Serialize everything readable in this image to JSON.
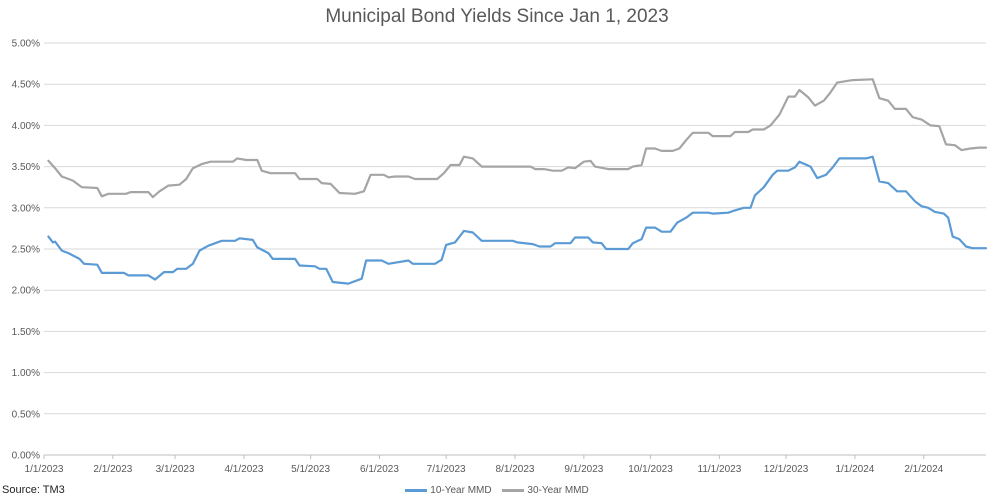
{
  "chart_data": {
    "type": "line",
    "title": "Municipal Bond Yields Since Jan 1, 2023",
    "xlabel": "",
    "ylabel": "",
    "ylim": [
      0,
      5
    ],
    "y_ticks": [
      0,
      0.5,
      1,
      1.5,
      2,
      2.5,
      3,
      3.5,
      4,
      4.5,
      5
    ],
    "y_tick_labels": [
      "0.00%",
      "0.50%",
      "1.00%",
      "1.50%",
      "2.00%",
      "2.50%",
      "3.00%",
      "3.50%",
      "4.00%",
      "4.50%",
      "5.00%"
    ],
    "x_tick_labels": [
      "1/1/2023",
      "2/1/2023",
      "3/1/2023",
      "4/1/2023",
      "5/1/2023",
      "6/1/2023",
      "7/1/2023",
      "8/1/2023",
      "9/1/2023",
      "10/1/2023",
      "11/1/2023",
      "12/1/2023",
      "1/1/2024",
      "2/1/2024"
    ],
    "x_range": [
      "2023-01-01",
      "2024-02-29"
    ],
    "grid": true,
    "legend_position": "bottom",
    "series": [
      {
        "name": "10-Year MMD",
        "color": "#5b9bd5",
        "points": [
          [
            "2023-01-03",
            2.65
          ],
          [
            "2023-01-05",
            2.58
          ],
          [
            "2023-01-06",
            2.59
          ],
          [
            "2023-01-09",
            2.48
          ],
          [
            "2023-01-12",
            2.45
          ],
          [
            "2023-01-17",
            2.38
          ],
          [
            "2023-01-19",
            2.32
          ],
          [
            "2023-01-25",
            2.31
          ],
          [
            "2023-01-27",
            2.21
          ],
          [
            "2023-02-06",
            2.21
          ],
          [
            "2023-02-08",
            2.18
          ],
          [
            "2023-02-17",
            2.18
          ],
          [
            "2023-02-20",
            2.13
          ],
          [
            "2023-02-24",
            2.22
          ],
          [
            "2023-02-28",
            2.22
          ],
          [
            "2023-03-02",
            2.26
          ],
          [
            "2023-03-06",
            2.26
          ],
          [
            "2023-03-09",
            2.32
          ],
          [
            "2023-03-12",
            2.48
          ],
          [
            "2023-03-16",
            2.54
          ],
          [
            "2023-03-22",
            2.6
          ],
          [
            "2023-03-28",
            2.6
          ],
          [
            "2023-03-30",
            2.63
          ],
          [
            "2023-04-05",
            2.61
          ],
          [
            "2023-04-07",
            2.52
          ],
          [
            "2023-04-12",
            2.45
          ],
          [
            "2023-04-14",
            2.38
          ],
          [
            "2023-04-24",
            2.38
          ],
          [
            "2023-04-26",
            2.3
          ],
          [
            "2023-05-03",
            2.29
          ],
          [
            "2023-05-05",
            2.26
          ],
          [
            "2023-05-08",
            2.26
          ],
          [
            "2023-05-11",
            2.1
          ],
          [
            "2023-05-18",
            2.08
          ],
          [
            "2023-05-24",
            2.14
          ],
          [
            "2023-05-26",
            2.36
          ],
          [
            "2023-06-02",
            2.36
          ],
          [
            "2023-06-05",
            2.32
          ],
          [
            "2023-06-14",
            2.36
          ],
          [
            "2023-06-16",
            2.32
          ],
          [
            "2023-06-26",
            2.32
          ],
          [
            "2023-06-29",
            2.37
          ],
          [
            "2023-07-01",
            2.55
          ],
          [
            "2023-07-05",
            2.58
          ],
          [
            "2023-07-09",
            2.72
          ],
          [
            "2023-07-13",
            2.7
          ],
          [
            "2023-07-17",
            2.6
          ],
          [
            "2023-07-31",
            2.6
          ],
          [
            "2023-08-02",
            2.58
          ],
          [
            "2023-08-09",
            2.56
          ],
          [
            "2023-08-12",
            2.53
          ],
          [
            "2023-08-17",
            2.53
          ],
          [
            "2023-08-19",
            2.57
          ],
          [
            "2023-08-26",
            2.57
          ],
          [
            "2023-08-28",
            2.64
          ],
          [
            "2023-09-03",
            2.64
          ],
          [
            "2023-09-05",
            2.58
          ],
          [
            "2023-09-09",
            2.57
          ],
          [
            "2023-09-11",
            2.5
          ],
          [
            "2023-09-21",
            2.5
          ],
          [
            "2023-09-23",
            2.57
          ],
          [
            "2023-09-27",
            2.62
          ],
          [
            "2023-09-29",
            2.76
          ],
          [
            "2023-10-03",
            2.76
          ],
          [
            "2023-10-06",
            2.71
          ],
          [
            "2023-10-10",
            2.71
          ],
          [
            "2023-10-13",
            2.82
          ],
          [
            "2023-10-17",
            2.88
          ],
          [
            "2023-10-20",
            2.94
          ],
          [
            "2023-10-27",
            2.94
          ],
          [
            "2023-10-29",
            2.93
          ],
          [
            "2023-11-05",
            2.94
          ],
          [
            "2023-11-07",
            2.96
          ],
          [
            "2023-11-12",
            3.0
          ],
          [
            "2023-11-15",
            3.0
          ],
          [
            "2023-11-17",
            3.15
          ],
          [
            "2023-11-21",
            3.25
          ],
          [
            "2023-11-25",
            3.4
          ],
          [
            "2023-11-27",
            3.45
          ],
          [
            "2023-12-02",
            3.45
          ],
          [
            "2023-12-05",
            3.49
          ],
          [
            "2023-12-07",
            3.56
          ],
          [
            "2023-12-12",
            3.5
          ],
          [
            "2023-12-15",
            3.36
          ],
          [
            "2023-12-19",
            3.4
          ],
          [
            "2023-12-22",
            3.49
          ],
          [
            "2023-12-25",
            3.6
          ],
          [
            "2024-01-06",
            3.6
          ],
          [
            "2024-01-09",
            3.62
          ],
          [
            "2024-01-12",
            3.32
          ],
          [
            "2024-01-16",
            3.3
          ],
          [
            "2024-01-20",
            3.2
          ],
          [
            "2024-01-24",
            3.2
          ],
          [
            "2024-01-28",
            3.08
          ],
          [
            "2024-01-31",
            3.02
          ],
          [
            "2024-02-03",
            3.0
          ],
          [
            "2024-02-06",
            2.95
          ],
          [
            "2024-02-10",
            2.93
          ],
          [
            "2024-02-12",
            2.88
          ],
          [
            "2024-02-14",
            2.65
          ],
          [
            "2024-02-17",
            2.62
          ],
          [
            "2024-02-20",
            2.53
          ],
          [
            "2024-02-23",
            2.51
          ],
          [
            "2024-02-29",
            2.51
          ]
        ]
      },
      {
        "name": "30-Year MMD",
        "color": "#a5a5a5",
        "points": [
          [
            "2023-01-03",
            3.57
          ],
          [
            "2023-01-06",
            3.48
          ],
          [
            "2023-01-09",
            3.38
          ],
          [
            "2023-01-14",
            3.33
          ],
          [
            "2023-01-18",
            3.25
          ],
          [
            "2023-01-25",
            3.24
          ],
          [
            "2023-01-27",
            3.14
          ],
          [
            "2023-01-30",
            3.17
          ],
          [
            "2023-02-07",
            3.17
          ],
          [
            "2023-02-09",
            3.19
          ],
          [
            "2023-02-17",
            3.19
          ],
          [
            "2023-02-19",
            3.13
          ],
          [
            "2023-02-22",
            3.2
          ],
          [
            "2023-02-26",
            3.27
          ],
          [
            "2023-03-03",
            3.28
          ],
          [
            "2023-03-06",
            3.35
          ],
          [
            "2023-03-09",
            3.48
          ],
          [
            "2023-03-13",
            3.53
          ],
          [
            "2023-03-17",
            3.56
          ],
          [
            "2023-03-27",
            3.56
          ],
          [
            "2023-03-29",
            3.6
          ],
          [
            "2023-04-02",
            3.58
          ],
          [
            "2023-04-07",
            3.58
          ],
          [
            "2023-04-09",
            3.45
          ],
          [
            "2023-04-13",
            3.42
          ],
          [
            "2023-04-24",
            3.42
          ],
          [
            "2023-04-26",
            3.35
          ],
          [
            "2023-05-04",
            3.35
          ],
          [
            "2023-05-06",
            3.3
          ],
          [
            "2023-05-10",
            3.29
          ],
          [
            "2023-05-14",
            3.18
          ],
          [
            "2023-05-21",
            3.17
          ],
          [
            "2023-05-25",
            3.2
          ],
          [
            "2023-05-28",
            3.4
          ],
          [
            "2023-06-03",
            3.4
          ],
          [
            "2023-06-05",
            3.37
          ],
          [
            "2023-06-08",
            3.38
          ],
          [
            "2023-06-14",
            3.38
          ],
          [
            "2023-06-17",
            3.35
          ],
          [
            "2023-06-27",
            3.35
          ],
          [
            "2023-06-30",
            3.42
          ],
          [
            "2023-07-03",
            3.52
          ],
          [
            "2023-07-07",
            3.52
          ],
          [
            "2023-07-09",
            3.62
          ],
          [
            "2023-07-13",
            3.6
          ],
          [
            "2023-07-17",
            3.5
          ],
          [
            "2023-08-08",
            3.5
          ],
          [
            "2023-08-10",
            3.47
          ],
          [
            "2023-08-14",
            3.47
          ],
          [
            "2023-08-18",
            3.45
          ],
          [
            "2023-08-22",
            3.45
          ],
          [
            "2023-08-25",
            3.49
          ],
          [
            "2023-08-28",
            3.48
          ],
          [
            "2023-09-01",
            3.56
          ],
          [
            "2023-09-04",
            3.57
          ],
          [
            "2023-09-06",
            3.5
          ],
          [
            "2023-09-12",
            3.47
          ],
          [
            "2023-09-21",
            3.47
          ],
          [
            "2023-09-23",
            3.5
          ],
          [
            "2023-09-27",
            3.52
          ],
          [
            "2023-09-29",
            3.72
          ],
          [
            "2023-10-03",
            3.72
          ],
          [
            "2023-10-06",
            3.69
          ],
          [
            "2023-10-11",
            3.69
          ],
          [
            "2023-10-14",
            3.72
          ],
          [
            "2023-10-17",
            3.82
          ],
          [
            "2023-10-20",
            3.91
          ],
          [
            "2023-10-27",
            3.91
          ],
          [
            "2023-10-29",
            3.87
          ],
          [
            "2023-11-06",
            3.87
          ],
          [
            "2023-11-08",
            3.92
          ],
          [
            "2023-11-14",
            3.92
          ],
          [
            "2023-11-16",
            3.95
          ],
          [
            "2023-11-21",
            3.95
          ],
          [
            "2023-11-24",
            4.0
          ],
          [
            "2023-11-28",
            4.13
          ],
          [
            "2023-12-02",
            4.35
          ],
          [
            "2023-12-05",
            4.35
          ],
          [
            "2023-12-07",
            4.43
          ],
          [
            "2023-12-11",
            4.34
          ],
          [
            "2023-12-14",
            4.24
          ],
          [
            "2023-12-18",
            4.3
          ],
          [
            "2023-12-21",
            4.4
          ],
          [
            "2023-12-24",
            4.52
          ],
          [
            "2023-12-31",
            4.55
          ],
          [
            "2024-01-09",
            4.56
          ],
          [
            "2024-01-12",
            4.33
          ],
          [
            "2024-01-16",
            4.3
          ],
          [
            "2024-01-19",
            4.2
          ],
          [
            "2024-01-24",
            4.2
          ],
          [
            "2024-01-27",
            4.1
          ],
          [
            "2024-01-31",
            4.07
          ],
          [
            "2024-02-04",
            4.0
          ],
          [
            "2024-02-08",
            3.99
          ],
          [
            "2024-02-11",
            3.77
          ],
          [
            "2024-02-15",
            3.76
          ],
          [
            "2024-02-18",
            3.7
          ],
          [
            "2024-02-22",
            3.72
          ],
          [
            "2024-02-26",
            3.73
          ],
          [
            "2024-02-29",
            3.73
          ]
        ]
      }
    ]
  },
  "source": "Source: TM3",
  "legend": [
    {
      "label": "10-Year MMD",
      "color": "#5b9bd5"
    },
    {
      "label": "30-Year MMD",
      "color": "#a5a5a5"
    }
  ]
}
